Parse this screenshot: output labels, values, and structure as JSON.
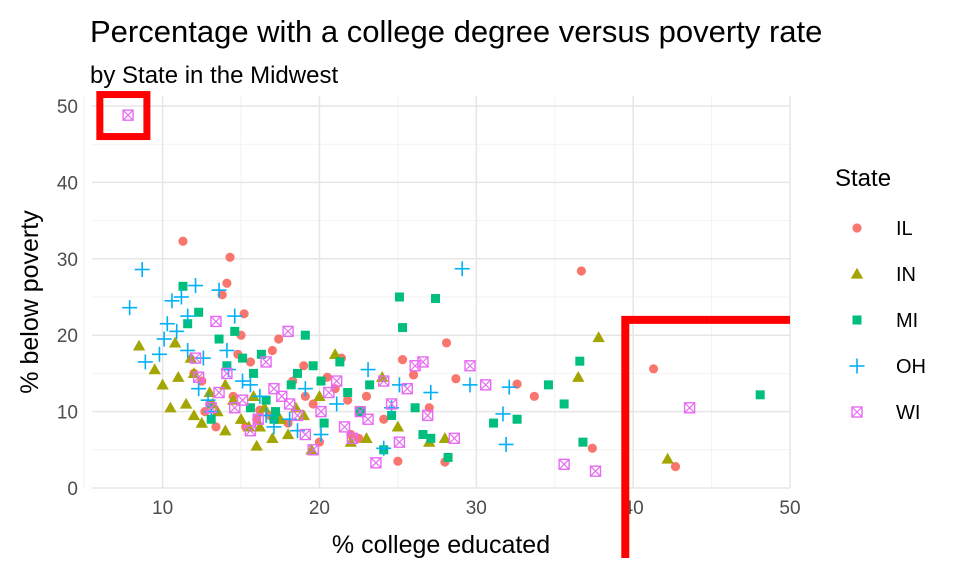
{
  "chart_data": {
    "type": "scatter",
    "title": "Percentage with a college degree versus poverty rate",
    "subtitle": "by State in the Midwest",
    "xlabel": "% college educated",
    "ylabel": "% below poverty",
    "xlim": [
      5.5,
      50
    ],
    "ylim": [
      0,
      50
    ],
    "xticks": [
      10,
      20,
      30,
      40,
      50
    ],
    "yticks": [
      0,
      10,
      20,
      30,
      40,
      50
    ],
    "grid": true,
    "legend": {
      "title": "State",
      "placement": "right",
      "entries": [
        {
          "name": "IL",
          "color": "#F8766D",
          "shape": "circle"
        },
        {
          "name": "IN",
          "color": "#A3A500",
          "shape": "triangle"
        },
        {
          "name": "MI",
          "color": "#00BF7D",
          "shape": "square"
        },
        {
          "name": "OH",
          "color": "#00B0F6",
          "shape": "plus"
        },
        {
          "name": "WI",
          "color": "#E76BF3",
          "shape": "boxcross"
        }
      ]
    },
    "highlight_color": "#FF0000",
    "highlights": [
      {
        "type": "box",
        "x": [
          6.0,
          9.0
        ],
        "y": [
          46.0,
          51.5
        ]
      },
      {
        "type": "corner",
        "x": [
          39.5,
          50.0
        ],
        "y": [
          0.0,
          22.0
        ]
      }
    ],
    "series": [
      {
        "name": "IL",
        "x": [
          11.3,
          14.3,
          14.1,
          36.7,
          41.3,
          42.7,
          37.4,
          28.0,
          33.7,
          32.6,
          28.1,
          25.0,
          26.0,
          27.0,
          19.6,
          13.8,
          15.2,
          18.3,
          21.4,
          23.0,
          22.5,
          16.0,
          17.4,
          16.2,
          15.6,
          14.5,
          13.4,
          12.7,
          19.1,
          20.0,
          21.0,
          24.1,
          22.0,
          12.0,
          17.0,
          15.0,
          13.0,
          18.0,
          20.5,
          14.8,
          16.8,
          19.0,
          12.5,
          15.3,
          21.8,
          25.3,
          28.7
        ],
        "y": [
          32.3,
          30.2,
          26.8,
          28.4,
          15.6,
          2.8,
          5.2,
          3.4,
          12.0,
          13.6,
          19.0,
          3.5,
          14.8,
          10.5,
          11.0,
          25.3,
          22.8,
          14.0,
          17.0,
          12.0,
          6.5,
          9.0,
          19.5,
          10.2,
          16.5,
          12.0,
          8.0,
          10.0,
          12.0,
          6.0,
          13.0,
          9.0,
          7.0,
          15.0,
          18.0,
          20.0,
          11.0,
          8.5,
          14.5,
          17.5,
          9.5,
          16.0,
          14.0,
          8.0,
          11.5,
          16.8,
          14.3
        ]
      },
      {
        "name": "IN",
        "x": [
          8.5,
          9.5,
          10.0,
          10.8,
          11.0,
          10.5,
          11.5,
          12.0,
          12.5,
          13.0,
          13.5,
          14.0,
          14.5,
          15.0,
          15.5,
          16.0,
          16.5,
          17.0,
          18.0,
          19.0,
          19.5,
          20.0,
          21.0,
          22.0,
          23.0,
          24.0,
          25.0,
          27.0,
          28.0,
          36.5,
          37.8,
          42.2,
          12.0,
          14.0,
          15.8,
          17.5,
          13.2,
          11.8,
          16.2,
          18.5
        ],
        "y": [
          18.6,
          15.5,
          13.5,
          19.0,
          14.5,
          10.5,
          11.0,
          9.5,
          8.5,
          12.5,
          10.0,
          7.5,
          11.5,
          9.0,
          8.0,
          5.5,
          10.5,
          6.5,
          7.0,
          9.5,
          5.0,
          12.0,
          17.5,
          6.0,
          6.5,
          14.5,
          8.0,
          6.0,
          6.5,
          14.5,
          19.7,
          3.8,
          15.0,
          13.5,
          12.0,
          9.0,
          11.0,
          17.0,
          8.0,
          10.5
        ]
      },
      {
        "name": "MI",
        "x": [
          11.3,
          11.6,
          12.3,
          13.6,
          14.6,
          15.1,
          15.8,
          16.3,
          17.2,
          18.2,
          19.1,
          19.6,
          20.3,
          21.3,
          21.8,
          23.2,
          24.1,
          25.1,
          25.3,
          26.1,
          27.1,
          27.4,
          28.2,
          31.1,
          32.6,
          34.6,
          35.6,
          36.6,
          36.8,
          48.1,
          22.6,
          24.6,
          26.6,
          13.1,
          16.6,
          18.6,
          20.1,
          14.1,
          15.6,
          17.1
        ],
        "y": [
          26.4,
          21.5,
          23.0,
          19.5,
          20.5,
          17.0,
          15.0,
          17.5,
          10.0,
          13.5,
          20.0,
          16.0,
          8.5,
          16.5,
          12.5,
          13.5,
          5.0,
          25.0,
          21.0,
          10.5,
          6.5,
          24.8,
          4.0,
          8.5,
          9.0,
          13.5,
          11.0,
          16.6,
          6.0,
          12.2,
          10.0,
          9.5,
          7.0,
          9.0,
          11.5,
          15.0,
          14.0,
          16.0,
          10.5,
          9.0
        ]
      },
      {
        "name": "OH",
        "x": [
          8.7,
          7.9,
          8.9,
          9.8,
          10.1,
          10.3,
          10.6,
          11.2,
          11.6,
          12.1,
          12.6,
          13.6,
          14.1,
          14.6,
          12.3,
          13.1,
          15.1,
          16.2,
          17.1,
          18.1,
          19.1,
          20.1,
          23.1,
          24.1,
          25.1,
          29.1,
          29.6,
          32.1,
          31.9,
          31.7,
          27.1,
          24.6,
          21.1,
          18.6,
          16.6,
          15.6,
          14.2,
          12.9,
          11.6,
          10.9
        ],
        "y": [
          28.6,
          23.6,
          16.5,
          17.5,
          19.5,
          21.5,
          24.5,
          25.0,
          22.5,
          26.5,
          17.0,
          25.9,
          18.0,
          22.5,
          13.0,
          10.0,
          14.0,
          12.0,
          8.0,
          9.0,
          13.0,
          7.0,
          15.5,
          5.2,
          13.5,
          28.7,
          13.5,
          13.2,
          5.7,
          9.7,
          12.5,
          10.5,
          11.0,
          7.5,
          9.5,
          13.5,
          15.5,
          11.5,
          18.0,
          20.5
        ]
      },
      {
        "name": "WI",
        "x": [
          7.8,
          13.4,
          12.3,
          13.6,
          14.6,
          15.6,
          16.6,
          17.6,
          18.0,
          18.6,
          19.6,
          20.1,
          21.6,
          22.6,
          23.6,
          24.6,
          25.1,
          26.6,
          26.1,
          28.6,
          29.6,
          30.6,
          35.6,
          37.6,
          43.6,
          14.1,
          15.1,
          16.1,
          17.1,
          19.1,
          20.6,
          22.1,
          24.1,
          26.9,
          12.1,
          13.1,
          18.1,
          21.1,
          23.1,
          25.6
        ],
        "y": [
          48.8,
          21.8,
          14.5,
          12.5,
          10.5,
          7.5,
          16.5,
          12.0,
          20.5,
          9.5,
          5.0,
          10.0,
          8.0,
          10.0,
          3.3,
          11.0,
          6.0,
          16.5,
          16.0,
          6.5,
          16.0,
          13.5,
          3.1,
          2.2,
          10.5,
          15.0,
          11.5,
          9.0,
          13.0,
          7.0,
          12.5,
          6.5,
          14.0,
          9.5,
          17.0,
          10.5,
          11.0,
          14.0,
          9.0,
          13.0
        ]
      }
    ]
  }
}
